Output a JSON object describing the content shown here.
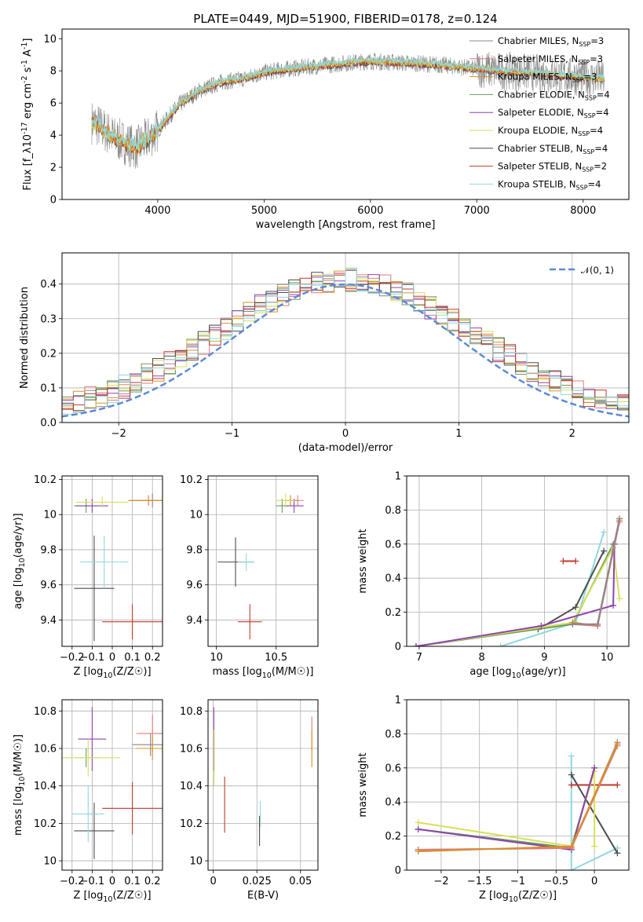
{
  "figure_title": "PLATE=0449, MJD=51900, FIBERID=0178, z=0.124",
  "colors": {
    "Chabrier MILES": "#888888",
    "Salpeter MILES": "#e07b7b",
    "Kroupa MILES": "#d8902a",
    "Chabrier ELODIE": "#6a9a5a",
    "Salpeter ELODIE": "#8e44ad",
    "Kroupa ELODIE": "#d6e05a",
    "Chabrier STELIB": "#4d4d4d",
    "Salpeter STELIB": "#c0392b",
    "Kroupa STELIB": "#8fd8de",
    "normal": "#5b8ad6"
  },
  "chart_data": [
    {
      "id": "spectrum",
      "type": "line",
      "xlabel": "wavelength [Angstrom, rest frame]",
      "ylabel": "Flux [f_λ10^{-17} erg cm^{-2} s^{-1} A^{-1}]",
      "xlim": [
        3100,
        8430
      ],
      "ylim": [
        0,
        10.6
      ],
      "xticks": [
        4000,
        5000,
        6000,
        7000,
        8000
      ],
      "yticks": [
        0,
        2,
        4,
        6,
        8,
        10
      ],
      "grid": false,
      "legend_position": "right",
      "legend": [
        {
          "name": "Chabrier MILES, N_SSP=3",
          "color_key": "Chabrier MILES"
        },
        {
          "name": "Salpeter MILES, N_SSP=3",
          "color_key": "Salpeter MILES"
        },
        {
          "name": "Kroupa MILES, N_SSP=3",
          "color_key": "Kroupa MILES"
        },
        {
          "name": "Chabrier ELODIE, N_SSP=4",
          "color_key": "Chabrier ELODIE"
        },
        {
          "name": "Salpeter ELODIE, N_SSP=4",
          "color_key": "Salpeter ELODIE"
        },
        {
          "name": "Kroupa ELODIE, N_SSP=4",
          "color_key": "Kroupa ELODIE"
        },
        {
          "name": "Chabrier STELIB, N_SSP=4",
          "color_key": "Chabrier STELIB"
        },
        {
          "name": "Salpeter STELIB, N_SSP=2",
          "color_key": "Salpeter STELIB"
        },
        {
          "name": "Kroupa STELIB, N_SSP=4",
          "color_key": "Kroupa STELIB"
        }
      ],
      "data_trend": {
        "x": [
          3400,
          3600,
          3800,
          4000,
          4200,
          4400,
          4600,
          4800,
          5000,
          5200,
          5500,
          5800,
          6000,
          6300,
          6600,
          6900,
          7200,
          7500,
          7800,
          8200
        ],
        "y": [
          4.8,
          3.8,
          3.2,
          4.3,
          5.9,
          6.8,
          7.3,
          7.5,
          7.9,
          8.1,
          8.3,
          8.5,
          8.6,
          8.5,
          8.4,
          8.2,
          8.0,
          7.9,
          7.7,
          7.5
        ]
      }
    },
    {
      "id": "residuals",
      "type": "histogram",
      "xlabel": "(data-model)/error",
      "ylabel": "Normed distribution",
      "xlim": [
        -2.5,
        2.5
      ],
      "ylim": [
        0,
        0.49
      ],
      "xticks": [
        -2,
        -1,
        0,
        1,
        2
      ],
      "yticks": [
        0.0,
        0.1,
        0.2,
        0.3,
        0.4
      ],
      "grid": true,
      "legend_position": "top-right",
      "normal_label": "𝒩(0, 1)",
      "bin_width": 0.1
    },
    {
      "id": "age-vs-Z",
      "type": "errorbar",
      "xlabel": "Z [log10(Z/Z☉)]",
      "ylabel": "age [log10(age/yr)]",
      "xlim": [
        -0.25,
        0.25
      ],
      "ylim": [
        9.25,
        10.22
      ],
      "xticks": [
        -0.2,
        -0.1,
        0.0,
        0.1,
        0.2
      ],
      "yticks": [
        9.4,
        9.6,
        9.8,
        10.0,
        10.2
      ],
      "grid": true,
      "points": [
        {
          "key": "Chabrier STELIB",
          "x": -0.09,
          "xerr": 0.1,
          "y": 9.58,
          "yerr": 0.3
        },
        {
          "key": "Salpeter STELIB",
          "x": 0.1,
          "xerr": 0.15,
          "y": 9.39,
          "yerr": 0.1
        },
        {
          "key": "Kroupa STELIB",
          "x": -0.04,
          "xerr": 0.12,
          "y": 9.73,
          "yerr": 0.15
        },
        {
          "key": "Chabrier MILES",
          "x": 0.2,
          "xerr": 0.1,
          "y": 10.08,
          "yerr": 0.04
        },
        {
          "key": "Salpeter MILES",
          "x": 0.18,
          "xerr": 0.1,
          "y": 10.08,
          "yerr": 0.03
        },
        {
          "key": "Kroupa MILES",
          "x": 0.18,
          "xerr": 0.1,
          "y": 10.08,
          "yerr": 0.03
        },
        {
          "key": "Chabrier ELODIE",
          "x": -0.13,
          "xerr": 0.06,
          "y": 10.05,
          "yerr": 0.04
        },
        {
          "key": "Salpeter ELODIE",
          "x": -0.1,
          "xerr": 0.08,
          "y": 10.05,
          "yerr": 0.04
        },
        {
          "key": "Kroupa ELODIE",
          "x": -0.05,
          "xerr": 0.13,
          "y": 10.07,
          "yerr": 0.03
        }
      ]
    },
    {
      "id": "age-vs-mass",
      "type": "errorbar",
      "xlabel": "mass [log10(M/M☉)]",
      "ylabel": "",
      "xlim": [
        9.93,
        10.85
      ],
      "ylim": [
        9.25,
        10.22
      ],
      "xticks": [
        10.0,
        10.5
      ],
      "yticks": [
        9.4,
        9.6,
        9.8,
        10.0,
        10.2
      ],
      "grid": true,
      "points": [
        {
          "key": "Chabrier STELIB",
          "x": 10.16,
          "xerr": 0.15,
          "y": 9.73,
          "yerr": 0.14
        },
        {
          "key": "Salpeter STELIB",
          "x": 10.28,
          "xerr": 0.1,
          "y": 9.39,
          "yerr": 0.1
        },
        {
          "key": "Kroupa STELIB",
          "x": 10.25,
          "xerr": 0.07,
          "y": 9.73,
          "yerr": 0.05
        },
        {
          "key": "Chabrier MILES",
          "x": 10.62,
          "xerr": 0.05,
          "y": 10.08,
          "yerr": 0.03
        },
        {
          "key": "Salpeter MILES",
          "x": 10.68,
          "xerr": 0.05,
          "y": 10.08,
          "yerr": 0.03
        },
        {
          "key": "Kroupa MILES",
          "x": 10.62,
          "xerr": 0.05,
          "y": 10.08,
          "yerr": 0.03
        },
        {
          "key": "Chabrier ELODIE",
          "x": 10.55,
          "xerr": 0.05,
          "y": 10.05,
          "yerr": 0.04
        },
        {
          "key": "Salpeter ELODIE",
          "x": 10.65,
          "xerr": 0.08,
          "y": 10.05,
          "yerr": 0.04
        },
        {
          "key": "Kroupa ELODIE",
          "x": 10.58,
          "xerr": 0.08,
          "y": 10.08,
          "yerr": 0.04
        }
      ]
    },
    {
      "id": "weight-vs-age",
      "type": "line",
      "xlabel": "age [log10(age/yr)]",
      "ylabel": "mass weight",
      "xlim": [
        6.8,
        10.35
      ],
      "ylim": [
        0,
        1.0
      ],
      "xticks": [
        7,
        8,
        9,
        10
      ],
      "yticks": [
        0.0,
        0.2,
        0.4,
        0.6,
        0.8,
        1.0
      ],
      "grid": true,
      "series": [
        {
          "key": "Kroupa STELIB",
          "x": [
            8.3,
            9.5,
            9.95
          ],
          "y": [
            0.0,
            0.14,
            0.67
          ]
        },
        {
          "key": "Chabrier STELIB",
          "x": [
            8.9,
            9.5,
            9.95
          ],
          "y": [
            0.1,
            0.23,
            0.56
          ]
        },
        {
          "key": "Salpeter STELIB",
          "x": [
            9.3,
            9.5
          ],
          "y": [
            0.5,
            0.5
          ]
        },
        {
          "key": "Chabrier ELODIE",
          "x": [
            6.95,
            9.45,
            10.1
          ],
          "y": [
            0.0,
            0.13,
            0.6
          ]
        },
        {
          "key": "Kroupa ELODIE",
          "x": [
            6.95,
            9.45,
            10.1,
            10.2
          ],
          "y": [
            0.0,
            0.14,
            0.58,
            0.28
          ]
        },
        {
          "key": "Salpeter ELODIE",
          "x": [
            6.95,
            8.95,
            10.1,
            10.12
          ],
          "y": [
            0.0,
            0.12,
            0.24,
            0.6
          ]
        },
        {
          "key": "Kroupa MILES",
          "x": [
            9.45,
            9.85,
            10.2
          ],
          "y": [
            0.14,
            0.12,
            0.74
          ]
        },
        {
          "key": "Salpeter MILES",
          "x": [
            9.45,
            9.85,
            10.2
          ],
          "y": [
            0.13,
            0.12,
            0.73
          ]
        },
        {
          "key": "Chabrier MILES",
          "x": [
            9.45,
            9.85,
            10.2
          ],
          "y": [
            0.13,
            0.13,
            0.75
          ]
        }
      ]
    },
    {
      "id": "mass-vs-Z",
      "type": "errorbar",
      "xlabel": "Z [log10(Z/Z☉)]",
      "ylabel": "mass [log10(M/M☉)]",
      "xlim": [
        -0.25,
        0.25
      ],
      "ylim": [
        9.95,
        10.86
      ],
      "xticks": [
        -0.2,
        -0.1,
        0.0,
        0.1,
        0.2
      ],
      "yticks": [
        10.0,
        10.2,
        10.4,
        10.6,
        10.8
      ],
      "grid": true,
      "points": [
        {
          "key": "Chabrier STELIB",
          "x": -0.09,
          "xerr": 0.1,
          "y": 10.16,
          "yerr": 0.15
        },
        {
          "key": "Salpeter STELIB",
          "x": 0.1,
          "xerr": 0.15,
          "y": 10.28,
          "yerr": 0.14
        },
        {
          "key": "Kroupa STELIB",
          "x": -0.12,
          "xerr": 0.08,
          "y": 10.25,
          "yerr": 0.15
        },
        {
          "key": "Chabrier MILES",
          "x": 0.19,
          "xerr": 0.09,
          "y": 10.62,
          "yerr": 0.06
        },
        {
          "key": "Salpeter MILES",
          "x": 0.2,
          "xerr": 0.08,
          "y": 10.68,
          "yerr": 0.1
        },
        {
          "key": "Kroupa MILES",
          "x": 0.2,
          "xerr": 0.08,
          "y": 10.6,
          "yerr": 0.06
        },
        {
          "key": "Chabrier ELODIE",
          "x": -0.13,
          "xerr": 0.06,
          "y": 10.55,
          "yerr": 0.05
        },
        {
          "key": "Salpeter ELODIE",
          "x": -0.1,
          "xerr": 0.07,
          "y": 10.65,
          "yerr": 0.17
        },
        {
          "key": "Kroupa ELODIE",
          "x": -0.12,
          "xerr": 0.16,
          "y": 10.55,
          "yerr": 0.1
        }
      ]
    },
    {
      "id": "mass-vs-ebv",
      "type": "errorbar",
      "xlabel": "E(B-V)",
      "ylabel": "",
      "xlim": [
        -0.003,
        0.06
      ],
      "ylim": [
        9.95,
        10.86
      ],
      "xticks": [
        0.0,
        0.025,
        0.05
      ],
      "yticks": [
        10.0,
        10.2,
        10.4,
        10.6,
        10.8
      ],
      "grid": true,
      "points": [
        {
          "key": "Chabrier STELIB",
          "x": 0.0265,
          "xerr": 0,
          "y": 10.16,
          "yerr": 0.08
        },
        {
          "key": "Salpeter STELIB",
          "x": 0.0065,
          "xerr": 0,
          "y": 10.3,
          "yerr": 0.15
        },
        {
          "key": "Kroupa STELIB",
          "x": 0.027,
          "xerr": 0,
          "y": 10.25,
          "yerr": 0.07
        },
        {
          "key": "Salpeter MILES",
          "x": 0.0565,
          "xerr": 0,
          "y": 10.68,
          "yerr": 0.09
        },
        {
          "key": "Kroupa MILES",
          "x": 0.0565,
          "xerr": 0,
          "y": 10.6,
          "yerr": 0.1
        },
        {
          "key": "Salpeter ELODIE",
          "x": 0.0003,
          "xerr": 0,
          "y": 10.65,
          "yerr": 0.17
        },
        {
          "key": "Kroupa ELODIE",
          "x": 0.0005,
          "xerr": 0,
          "y": 10.55,
          "yerr": 0.15
        }
      ]
    },
    {
      "id": "weight-vs-Z",
      "type": "line",
      "xlabel": "Z [log10(Z/Z☉)]",
      "ylabel": "mass weight",
      "xlim": [
        -2.45,
        0.45
      ],
      "ylim": [
        0,
        1.0
      ],
      "xticks": [
        -2.0,
        -1.5,
        -1.0,
        -0.5,
        0.0
      ],
      "yticks": [
        0.0,
        0.2,
        0.4,
        0.6,
        0.8,
        1.0
      ],
      "grid": true,
      "series": [
        {
          "key": "Kroupa STELIB",
          "x": [
            -0.3,
            -0.3,
            0.3
          ],
          "y": [
            0.67,
            0.0,
            0.13
          ]
        },
        {
          "key": "Chabrier STELIB",
          "x": [
            -0.3,
            0.3
          ],
          "y": [
            0.56,
            0.1
          ]
        },
        {
          "key": "Salpeter STELIB",
          "x": [
            -0.3,
            0.3
          ],
          "y": [
            0.5,
            0.5
          ]
        },
        {
          "key": "Kroupa ELODIE",
          "x": [
            -2.3,
            -0.3,
            0.0,
            0.0
          ],
          "y": [
            0.28,
            0.14,
            0.58,
            0.14
          ]
        },
        {
          "key": "Chabrier ELODIE",
          "x": [
            -2.3,
            -0.3,
            0.0
          ],
          "y": [
            0.24,
            0.13,
            0.6
          ]
        },
        {
          "key": "Salpeter ELODIE",
          "x": [
            -2.3,
            -0.3,
            0.0
          ],
          "y": [
            0.24,
            0.12,
            0.6
          ]
        },
        {
          "key": "Chabrier MILES",
          "x": [
            -2.3,
            -0.3,
            0.3
          ],
          "y": [
            0.12,
            0.13,
            0.75
          ]
        },
        {
          "key": "Salpeter MILES",
          "x": [
            -2.3,
            -0.3,
            0.3
          ],
          "y": [
            0.12,
            0.13,
            0.73
          ]
        },
        {
          "key": "Kroupa MILES",
          "x": [
            -2.3,
            -0.3,
            0.3
          ],
          "y": [
            0.11,
            0.14,
            0.74
          ]
        }
      ]
    }
  ]
}
